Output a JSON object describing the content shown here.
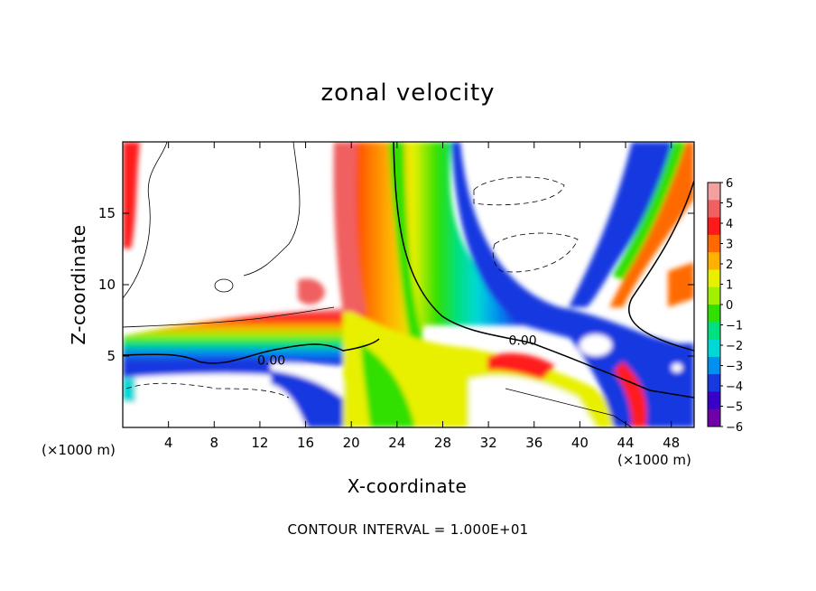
{
  "chart_data": {
    "type": "heatmap",
    "title": "zonal velocity",
    "xlabel": "X-coordinate",
    "ylabel": "Z-coordinate",
    "x_unit": "(×1000 m)",
    "x_ticks": [
      4,
      8,
      12,
      16,
      20,
      24,
      28,
      32,
      36,
      40,
      44,
      48
    ],
    "y_ticks": [
      5,
      10,
      15
    ],
    "xlim": [
      0,
      50
    ],
    "ylim": [
      0,
      20
    ],
    "colorbar": {
      "ticks": [
        6,
        5,
        4,
        3,
        2,
        1,
        0,
        -1,
        -2,
        -3,
        -4,
        -5,
        -6
      ],
      "tick_labels": [
        "6",
        "5",
        "4",
        "3",
        "2",
        "1",
        "0",
        "−1",
        "−2",
        "−3",
        "−4",
        "−5",
        "−6"
      ],
      "colors": [
        "#f4a0a0",
        "#f06060",
        "#ff1a1a",
        "#ff6a00",
        "#ffb000",
        "#e8f000",
        "#a0f000",
        "#30e000",
        "#00e080",
        "#00d8d8",
        "#0090f0",
        "#1838e0",
        "#3800c8",
        "#7000a8"
      ]
    },
    "contour_labels": [
      {
        "text": "0.00",
        "x": 13,
        "z": 4.7
      },
      {
        "text": "0.00",
        "x": 35,
        "z": 6.1
      }
    ],
    "footer": "CONTOUR INTERVAL = 1.000E+01"
  }
}
